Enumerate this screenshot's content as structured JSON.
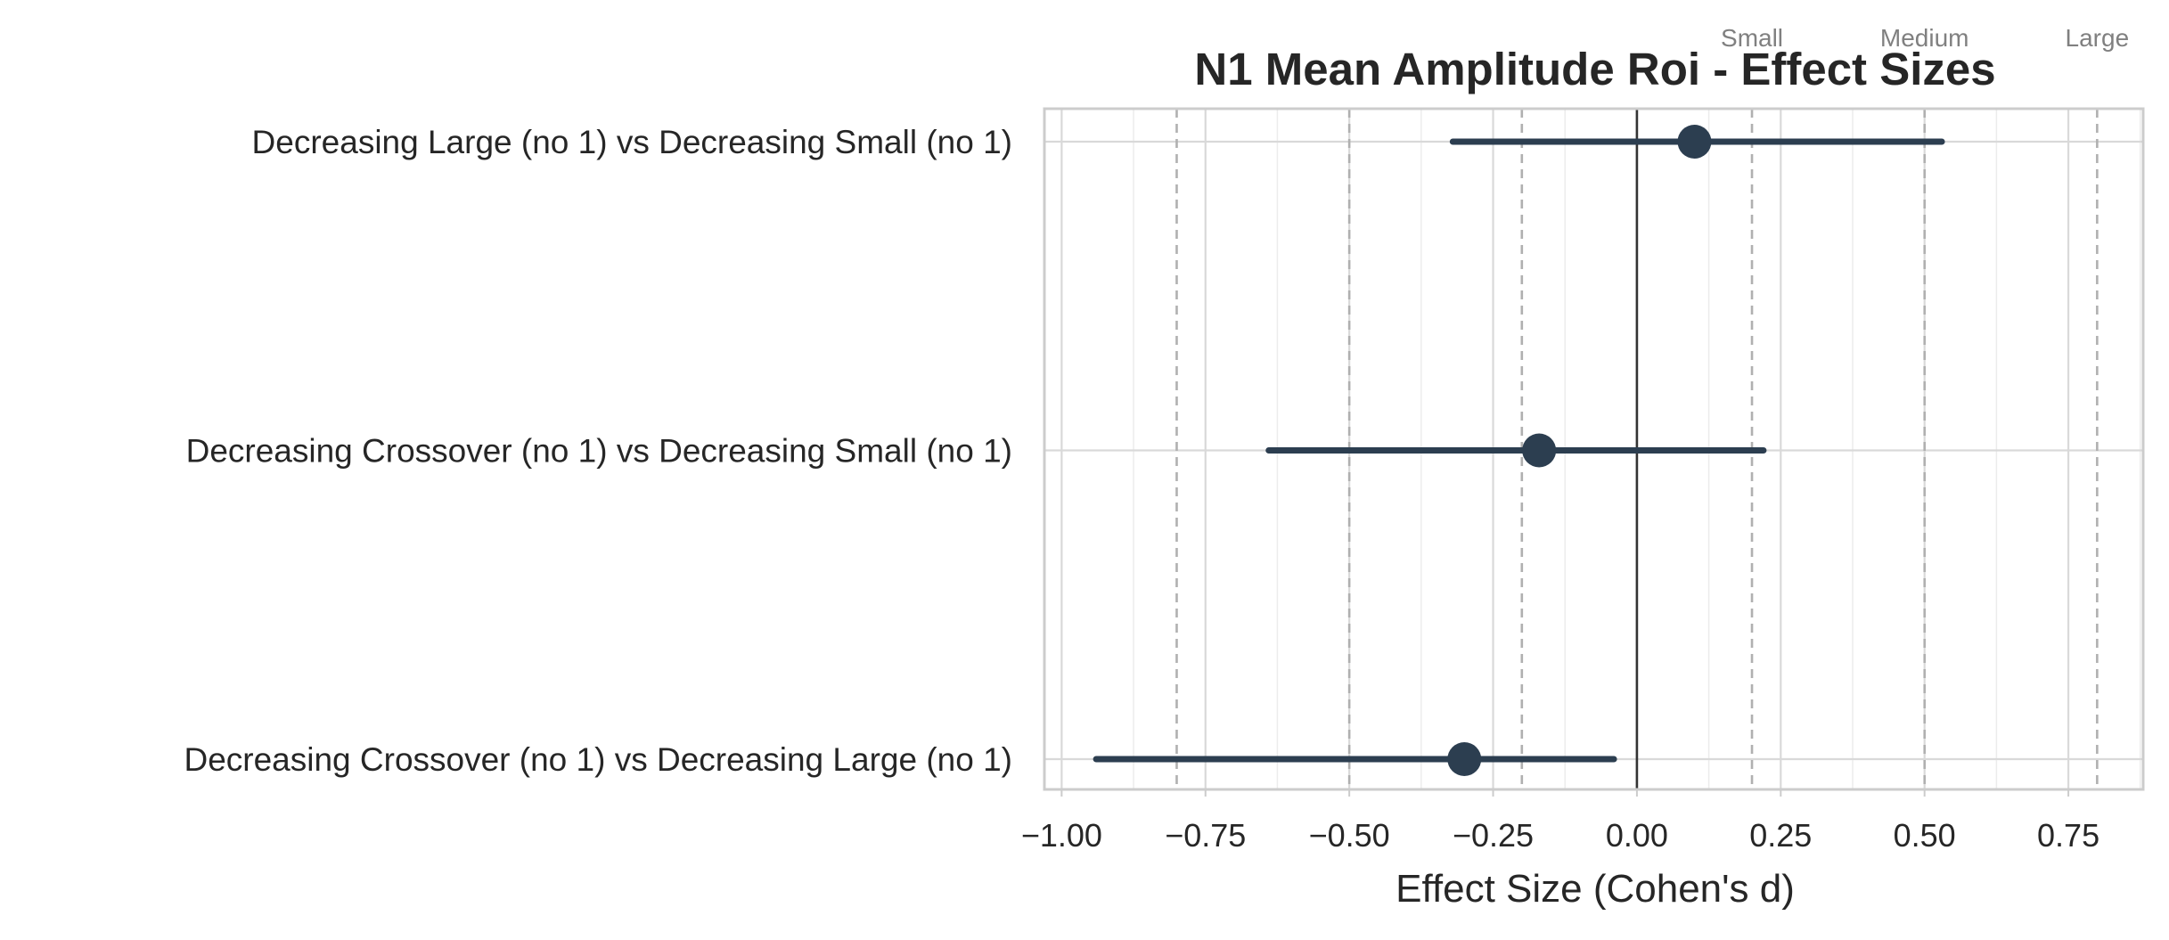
{
  "chart_data": {
    "type": "forest",
    "title": "N1 Mean Amplitude Roi - Effect Sizes",
    "xlabel": "Effect Size (Cohen's d)",
    "ylabel": "",
    "xlim": [
      -1.03,
      0.88
    ],
    "xticks": [
      -1.0,
      -0.75,
      -0.5,
      -0.25,
      0.0,
      0.25,
      0.5,
      0.75
    ],
    "xtick_labels": [
      "−1.00",
      "−0.75",
      "−0.50",
      "−0.25",
      "0.00",
      "0.25",
      "0.50",
      "0.75"
    ],
    "grid": true,
    "zero_line": 0.0,
    "threshold_lines": [
      -0.8,
      -0.5,
      -0.2,
      0.2,
      0.5,
      0.8
    ],
    "threshold_labels": [
      {
        "value": 0.2,
        "label": "Small"
      },
      {
        "value": 0.5,
        "label": "Medium"
      },
      {
        "value": 0.8,
        "label": "Large"
      }
    ],
    "comparisons": [
      {
        "label": "Decreasing Large (no 1) vs Decreasing Small (no 1)",
        "d": 0.1,
        "ci_low": -0.32,
        "ci_high": 0.53
      },
      {
        "label": "Decreasing Crossover (no 1) vs Decreasing Small (no 1)",
        "d": -0.17,
        "ci_low": -0.64,
        "ci_high": 0.22
      },
      {
        "label": "Decreasing Crossover (no 1) vs Decreasing Large (no 1)",
        "d": -0.3,
        "ci_low": -0.94,
        "ci_high": -0.04
      }
    ],
    "colors": {
      "point": "#2c3e50",
      "ci": "#2c3e50",
      "zero_line": "#333333",
      "threshold": "#b0b0b0",
      "grid": "#d9d9d9",
      "frame": "#cccccc",
      "text": "#262626",
      "threshold_text": "#808080"
    }
  }
}
